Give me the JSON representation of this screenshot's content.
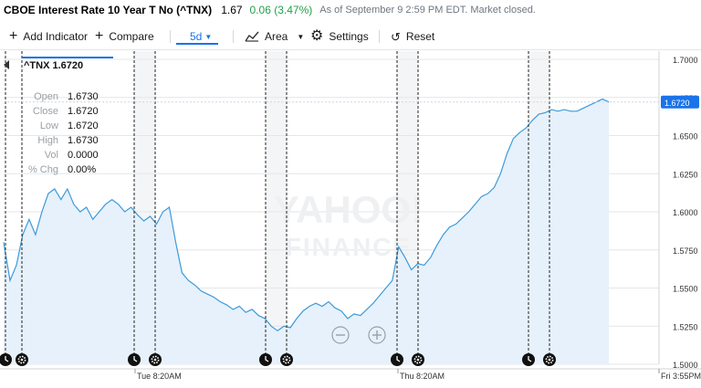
{
  "header": {
    "name": "CBOE Interest Rate 10 Year T No (^TNX)",
    "price": "1.67",
    "change": "0.06 (3.47%)",
    "asof": "As of September 9 2:59 PM EDT. Market closed."
  },
  "toolbar": {
    "add_indicator": "Add Indicator",
    "compare": "Compare",
    "period": "5d",
    "chart_type": "Area",
    "settings": "Settings",
    "reset": "Reset"
  },
  "tooltip": {
    "symbol": "^TNX 1.6720",
    "rows": [
      {
        "k": "Open",
        "v": "1.6730"
      },
      {
        "k": "Close",
        "v": "1.6720"
      },
      {
        "k": "Low",
        "v": "1.6720"
      },
      {
        "k": "High",
        "v": "1.6730"
      },
      {
        "k": "Vol",
        "v": "0.0000"
      },
      {
        "k": "% Chg",
        "v": "0.00%"
      }
    ]
  },
  "watermark": {
    "line1": "YAHOO!",
    "line2": "FINANCE"
  },
  "colors": {
    "line": "#3d9ad9",
    "fill": "#e6f1fb",
    "change": "#21a04a",
    "accent": "#1a73e8"
  },
  "chart_data": {
    "type": "area",
    "title": "CBOE Interest Rate 10 Year T No (^TNX)",
    "ylim": [
      1.5,
      1.7
    ],
    "yticks": [
      "1.7000",
      "1.6750",
      "1.6500",
      "1.6250",
      "1.6000",
      "1.5750",
      "1.5500",
      "1.5250",
      "1.5000"
    ],
    "xtick_labels": [
      "Tue 8:20AM",
      "Thu 8:20AM",
      "Fri 3:55PM"
    ],
    "last_value_label": "1.6720",
    "grid": true,
    "x_domain": [
      0,
      100
    ],
    "points": [
      [
        0,
        1.58
      ],
      [
        1,
        1.555
      ],
      [
        2,
        1.565
      ],
      [
        3,
        1.585
      ],
      [
        4,
        1.595
      ],
      [
        5,
        1.585
      ],
      [
        6,
        1.6
      ],
      [
        7,
        1.612
      ],
      [
        8,
        1.615
      ],
      [
        9,
        1.608
      ],
      [
        10,
        1.615
      ],
      [
        11,
        1.605
      ],
      [
        12,
        1.6
      ],
      [
        13,
        1.603
      ],
      [
        14,
        1.595
      ],
      [
        15,
        1.6
      ],
      [
        16,
        1.605
      ],
      [
        17,
        1.608
      ],
      [
        18,
        1.605
      ],
      [
        19,
        1.6
      ],
      [
        20,
        1.603
      ],
      [
        21,
        1.598
      ],
      [
        22,
        1.594
      ],
      [
        23,
        1.597
      ],
      [
        24,
        1.592
      ],
      [
        25,
        1.6
      ],
      [
        26,
        1.603
      ],
      [
        27,
        1.58
      ],
      [
        28,
        1.56
      ],
      [
        29,
        1.555
      ],
      [
        30,
        1.552
      ],
      [
        31,
        1.548
      ],
      [
        32,
        1.546
      ],
      [
        33,
        1.544
      ],
      [
        34,
        1.541
      ],
      [
        35,
        1.539
      ],
      [
        36,
        1.536
      ],
      [
        37,
        1.538
      ],
      [
        38,
        1.534
      ],
      [
        39,
        1.536
      ],
      [
        40,
        1.532
      ],
      [
        41,
        1.53
      ],
      [
        42,
        1.525
      ],
      [
        43,
        1.522
      ],
      [
        44,
        1.525
      ],
      [
        45,
        1.524
      ],
      [
        46,
        1.53
      ],
      [
        47,
        1.535
      ],
      [
        48,
        1.538
      ],
      [
        49,
        1.54
      ],
      [
        50,
        1.538
      ],
      [
        51,
        1.541
      ],
      [
        52,
        1.537
      ],
      [
        53,
        1.535
      ],
      [
        54,
        1.53
      ],
      [
        55,
        1.533
      ],
      [
        56,
        1.532
      ],
      [
        57,
        1.536
      ],
      [
        58,
        1.54
      ],
      [
        59,
        1.545
      ],
      [
        60,
        1.55
      ],
      [
        61,
        1.555
      ],
      [
        62,
        1.577
      ],
      [
        63,
        1.57
      ],
      [
        64,
        1.562
      ],
      [
        65,
        1.566
      ],
      [
        66,
        1.565
      ],
      [
        67,
        1.57
      ],
      [
        68,
        1.578
      ],
      [
        69,
        1.585
      ],
      [
        70,
        1.59
      ],
      [
        71,
        1.592
      ],
      [
        72,
        1.596
      ],
      [
        73,
        1.6
      ],
      [
        74,
        1.605
      ],
      [
        75,
        1.61
      ],
      [
        76,
        1.612
      ],
      [
        77,
        1.616
      ],
      [
        78,
        1.625
      ],
      [
        79,
        1.638
      ],
      [
        80,
        1.648
      ],
      [
        81,
        1.652
      ],
      [
        82,
        1.655
      ],
      [
        83,
        1.66
      ],
      [
        84,
        1.664
      ],
      [
        85,
        1.665
      ],
      [
        86,
        1.667
      ],
      [
        87,
        1.666
      ],
      [
        88,
        1.667
      ],
      [
        89,
        1.666
      ],
      [
        90,
        1.666
      ],
      [
        91,
        1.668
      ],
      [
        92,
        1.67
      ],
      [
        93,
        1.672
      ],
      [
        94,
        1.674
      ],
      [
        95,
        1.672
      ]
    ]
  },
  "event_markers": [
    "clock-icon",
    "gear-icon",
    "clock-icon",
    "gear-icon",
    "clock-icon",
    "gear-icon",
    "clock-icon",
    "gear-icon",
    "clock-icon",
    "gear-icon"
  ]
}
